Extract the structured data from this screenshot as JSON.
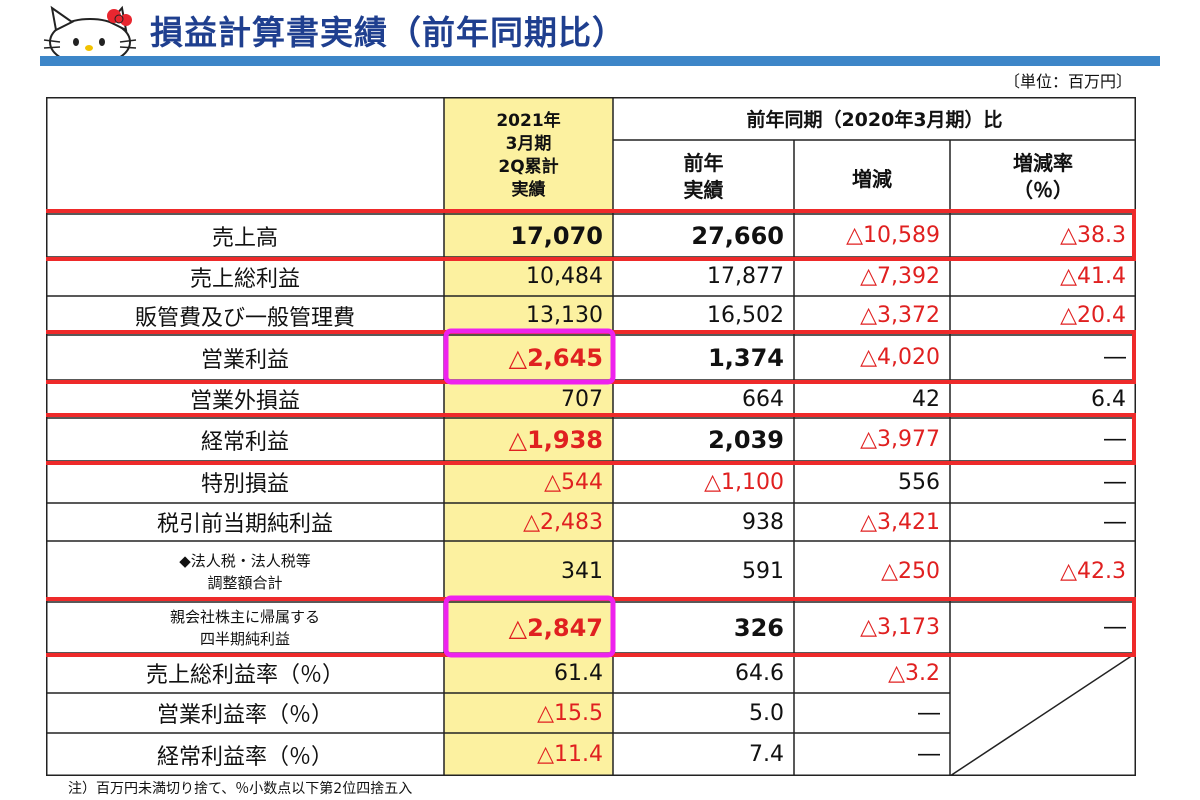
{
  "page": {
    "title": "損益計算書実績（前年同期比）",
    "unit": "〔単位：百万円〕",
    "footnote": "注）百万円未満切り捨て、％小数点以下第2位四捨五入"
  },
  "colors": {
    "title": "#1f3f8f",
    "title_bar": "#3d86c8",
    "highlight_column": "#fcf1a0",
    "negative": "#e02020",
    "row_highlight_border": "#ee2a2a",
    "cell_highlight_border": "#ee22ee"
  },
  "header": {
    "current": [
      "2021年",
      "3月期",
      "2Q累計",
      "実績"
    ],
    "comparison_title": "前年同期（2020年3月期）比",
    "prev": [
      "前年",
      "実績"
    ],
    "change": "増減",
    "rate": [
      "増減率",
      "（％）"
    ]
  },
  "rows": [
    {
      "label": "売上高",
      "current": "17,070",
      "prev": "27,660",
      "change": "△10,589",
      "rate": "△38.3"
    },
    {
      "label": "売上総利益",
      "current": "10,484",
      "prev": "17,877",
      "change": "△7,392",
      "rate": "△41.4"
    },
    {
      "label": "販管費及び一般管理費",
      "current": "13,130",
      "prev": "16,502",
      "change": "△3,372",
      "rate": "△20.4"
    },
    {
      "label": "営業利益",
      "current": "△2,645",
      "prev": "1,374",
      "change": "△4,020",
      "rate": "―"
    },
    {
      "label": "営業外損益",
      "current": "707",
      "prev": "664",
      "change": "42",
      "rate": "6.4"
    },
    {
      "label": "経常利益",
      "current": "△1,938",
      "prev": "2,039",
      "change": "△3,977",
      "rate": "―"
    },
    {
      "label": "特別損益",
      "current": "△544",
      "prev": "△1,100",
      "change": "556",
      "rate": "―"
    },
    {
      "label": "税引前当期純利益",
      "current": "△2,483",
      "prev": "938",
      "change": "△3,421",
      "rate": "―"
    },
    {
      "label": "◆法人税・法人税等\n調整額合計",
      "current": "341",
      "prev": "591",
      "change": "△250",
      "rate": "△42.3"
    },
    {
      "label": "親会社株主に帰属する\n四半期純利益",
      "current": "△2,847",
      "prev": "326",
      "change": "△3,173",
      "rate": "―"
    },
    {
      "label": "売上総利益率（％）",
      "current": "61.4",
      "prev": "64.6",
      "change": "△3.2",
      "rate": ""
    },
    {
      "label": "営業利益率（％）",
      "current": "△15.5",
      "prev": "5.0",
      "change": "―",
      "rate": ""
    },
    {
      "label": "経常利益率（％）",
      "current": "△11.4",
      "prev": "7.4",
      "change": "―",
      "rate": ""
    }
  ],
  "highlighted_rows": [
    "売上高",
    "営業利益",
    "経常利益",
    "親会社株主に帰属する\n四半期純利益"
  ],
  "highlighted_cells": [
    "営業利益",
    "親会社株主に帰属する\n四半期純利益"
  ]
}
